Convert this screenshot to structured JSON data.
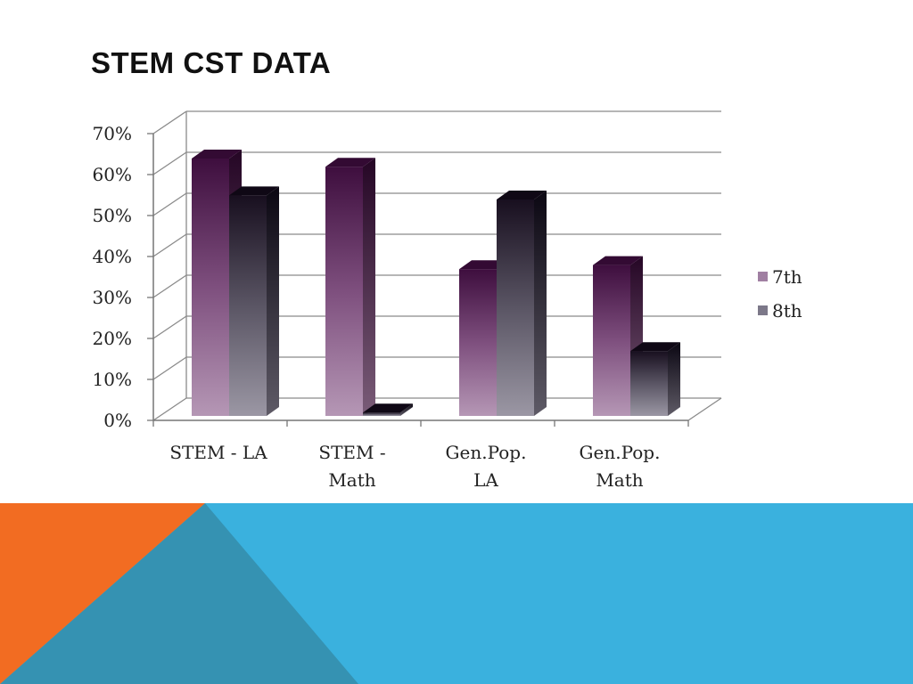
{
  "slide": {
    "title": "STEM CST DATA",
    "colors": {
      "accent_orange": "#F26C22",
      "accent_blue": "#3AB1DE",
      "accent_teal": "#3592B2"
    }
  },
  "chart_data": {
    "type": "bar",
    "title": "",
    "xlabel": "",
    "ylabel": "",
    "categories": [
      "STEM -  LA",
      "STEM - Math",
      "Gen.Pop. LA",
      "Gen.Pop. Math"
    ],
    "category_lines": [
      [
        "STEM -  LA"
      ],
      [
        "STEM -",
        "Math"
      ],
      [
        "Gen.Pop.",
        "LA"
      ],
      [
        "Gen.Pop.",
        "Math"
      ]
    ],
    "series": [
      {
        "name": "7th",
        "values": [
          65,
          63,
          38,
          39
        ]
      },
      {
        "name": "8th",
        "values": [
          56,
          3,
          55,
          18
        ]
      }
    ],
    "ylim": [
      0,
      70
    ],
    "yticks": [
      0,
      10,
      20,
      30,
      40,
      50,
      60,
      70
    ],
    "ytick_labels": [
      "0%",
      "10%",
      "20%",
      "30%",
      "40%",
      "50%",
      "60%",
      "70%"
    ],
    "grid": true,
    "three_d": true,
    "legend_position": "right",
    "series_colors": [
      "#A985A8",
      "#8C8794"
    ]
  }
}
